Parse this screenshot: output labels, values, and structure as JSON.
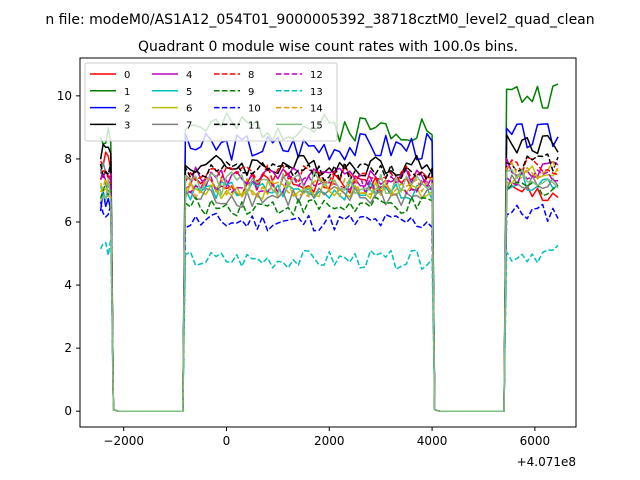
{
  "chart_data": {
    "type": "line",
    "suptitle": "n file: modeM0/AS1A12_054T01_9000005392_38718cztM0_level2_quad_clean",
    "title": "Quadrant 0 module wise count rates with 100.0s bins.",
    "xlabel": "",
    "ylabel": "",
    "x_offset_label": "+4.071e8",
    "xlim": [
      -2850,
      6800
    ],
    "ylim": [
      -0.5,
      11.2
    ],
    "xticks": [
      -2000,
      0,
      2000,
      4000,
      6000
    ],
    "xtick_labels": [
      "−2000",
      "0",
      "2000",
      "4000",
      "6000"
    ],
    "yticks": [
      0,
      2,
      4,
      6,
      8,
      10
    ],
    "ytick_labels": [
      "0",
      "2",
      "4",
      "6",
      "8",
      "10"
    ],
    "grid": false,
    "legend_position": "top-left",
    "legend_columns": 4,
    "segments": [
      {
        "start": -2450,
        "end": -2250,
        "step": 50
      },
      {
        "start": -800,
        "end": 4000,
        "step": 100
      },
      {
        "start": 5450,
        "end": 6450,
        "step": 100
      }
    ],
    "gap_level": 0.0,
    "series": [
      {
        "name": "0",
        "color": "#ff0000",
        "dash": false,
        "levels": [
          7.9,
          7.2,
          6.9
        ],
        "amp": 0.35
      },
      {
        "name": "1",
        "color": "#008000",
        "dash": false,
        "levels": [
          8.8,
          9.0,
          10.0
        ],
        "amp": 0.45
      },
      {
        "name": "2",
        "color": "#0000ff",
        "dash": false,
        "levels": [
          6.6,
          8.4,
          8.7
        ],
        "amp": 0.45
      },
      {
        "name": "3",
        "color": "#000000",
        "dash": false,
        "levels": [
          8.3,
          7.8,
          8.5
        ],
        "amp": 0.35
      },
      {
        "name": "4",
        "color": "#bf00bf",
        "dash": false,
        "levels": [
          7.4,
          7.4,
          7.7
        ],
        "amp": 0.35
      },
      {
        "name": "5",
        "color": "#00bfbf",
        "dash": false,
        "levels": [
          7.0,
          7.0,
          7.3
        ],
        "amp": 0.3
      },
      {
        "name": "6",
        "color": "#bfbf00",
        "dash": false,
        "levels": [
          7.2,
          7.0,
          7.5
        ],
        "amp": 0.3
      },
      {
        "name": "7",
        "color": "#808080",
        "dash": false,
        "levels": [
          7.6,
          6.8,
          7.2
        ],
        "amp": 0.35
      },
      {
        "name": "8",
        "color": "#ff0000",
        "dash": true,
        "levels": [
          7.5,
          7.5,
          7.8
        ],
        "amp": 0.3
      },
      {
        "name": "9",
        "color": "#008000",
        "dash": true,
        "levels": [
          7.0,
          6.5,
          7.1
        ],
        "amp": 0.3
      },
      {
        "name": "10",
        "color": "#0000ff",
        "dash": true,
        "levels": [
          6.4,
          6.0,
          6.3
        ],
        "amp": 0.3
      },
      {
        "name": "11",
        "color": "#000000",
        "dash": true,
        "levels": [
          7.7,
          7.6,
          7.9
        ],
        "amp": 0.3
      },
      {
        "name": "12",
        "color": "#bf00bf",
        "dash": true,
        "levels": [
          7.3,
          7.2,
          7.4
        ],
        "amp": 0.3
      },
      {
        "name": "13",
        "color": "#00bfbf",
        "dash": true,
        "levels": [
          5.2,
          4.8,
          5.0
        ],
        "amp": 0.3
      },
      {
        "name": "14",
        "color": "#dfa000",
        "dash": true,
        "levels": [
          7.1,
          7.1,
          7.6
        ],
        "amp": 0.3
      },
      {
        "name": "15",
        "color": "#7fbf7f",
        "dash": false,
        "levels": [
          7.0,
          7.2,
          7.4
        ],
        "amp": 0.4
      }
    ]
  }
}
